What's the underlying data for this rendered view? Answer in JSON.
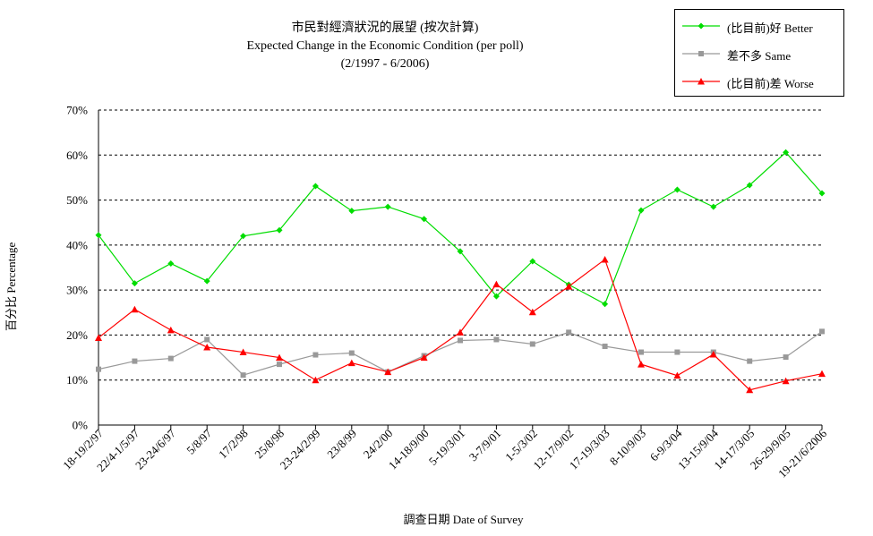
{
  "chart_data": {
    "type": "line",
    "title": "市民對經濟狀況的展望 (按次計算)",
    "subtitle": "Expected Change in the Economic Condition (per poll)",
    "period": "(2/1997 - 6/2006)",
    "xlabel": "調查日期 Date of Survey",
    "ylabel": "百分比 Percentage",
    "ylim": [
      0,
      70
    ],
    "yticks": [
      "0%",
      "10%",
      "20%",
      "30%",
      "40%",
      "50%",
      "60%",
      "70%"
    ],
    "grid": "horizontal dashed",
    "legend_position": "top-right",
    "categories": [
      "18-19/2/97",
      "22/4-1/5/97",
      "23-24/6/97",
      "5/8/97",
      "17/2/98",
      "25/8/98",
      "23-24/2/99",
      "23/8/99",
      "24/2/00",
      "14-18/9/00",
      "5-19/3/01",
      "3-7/9/01",
      "1-5/3/02",
      "12-17/9/02",
      "17-19/3/03",
      "8-10/9/03",
      "6-9/3/04",
      "13-15/9/04",
      "14-17/3/05",
      "26-29/9/05",
      "19-21/6/2006"
    ],
    "series": [
      {
        "name": "(比目前)好 Better",
        "color": "#00dd00",
        "marker": "diamond",
        "values": [
          42.2,
          31.5,
          35.9,
          32.0,
          42.0,
          43.3,
          53.1,
          47.6,
          48.5,
          45.8,
          38.6,
          28.6,
          36.4,
          31.2,
          26.9,
          47.7,
          52.3,
          48.5,
          53.3,
          60.6,
          51.5
        ]
      },
      {
        "name": "差不多 Same",
        "color": "#999999",
        "marker": "square",
        "values": [
          12.4,
          14.2,
          14.8,
          19.0,
          11.1,
          13.5,
          15.6,
          16.0,
          11.8,
          15.4,
          18.8,
          19.0,
          18.0,
          20.6,
          17.5,
          16.2,
          16.2,
          16.2,
          14.2,
          15.1,
          20.8
        ]
      },
      {
        "name": "(比目前)差 Worse",
        "color": "#ff0000",
        "marker": "triangle",
        "values": [
          19.4,
          25.7,
          21.1,
          17.3,
          16.2,
          15.0,
          10.0,
          13.8,
          11.8,
          15.0,
          20.6,
          31.3,
          25.1,
          30.8,
          36.8,
          13.5,
          11.0,
          15.7,
          7.8,
          9.8,
          11.4
        ]
      }
    ]
  }
}
